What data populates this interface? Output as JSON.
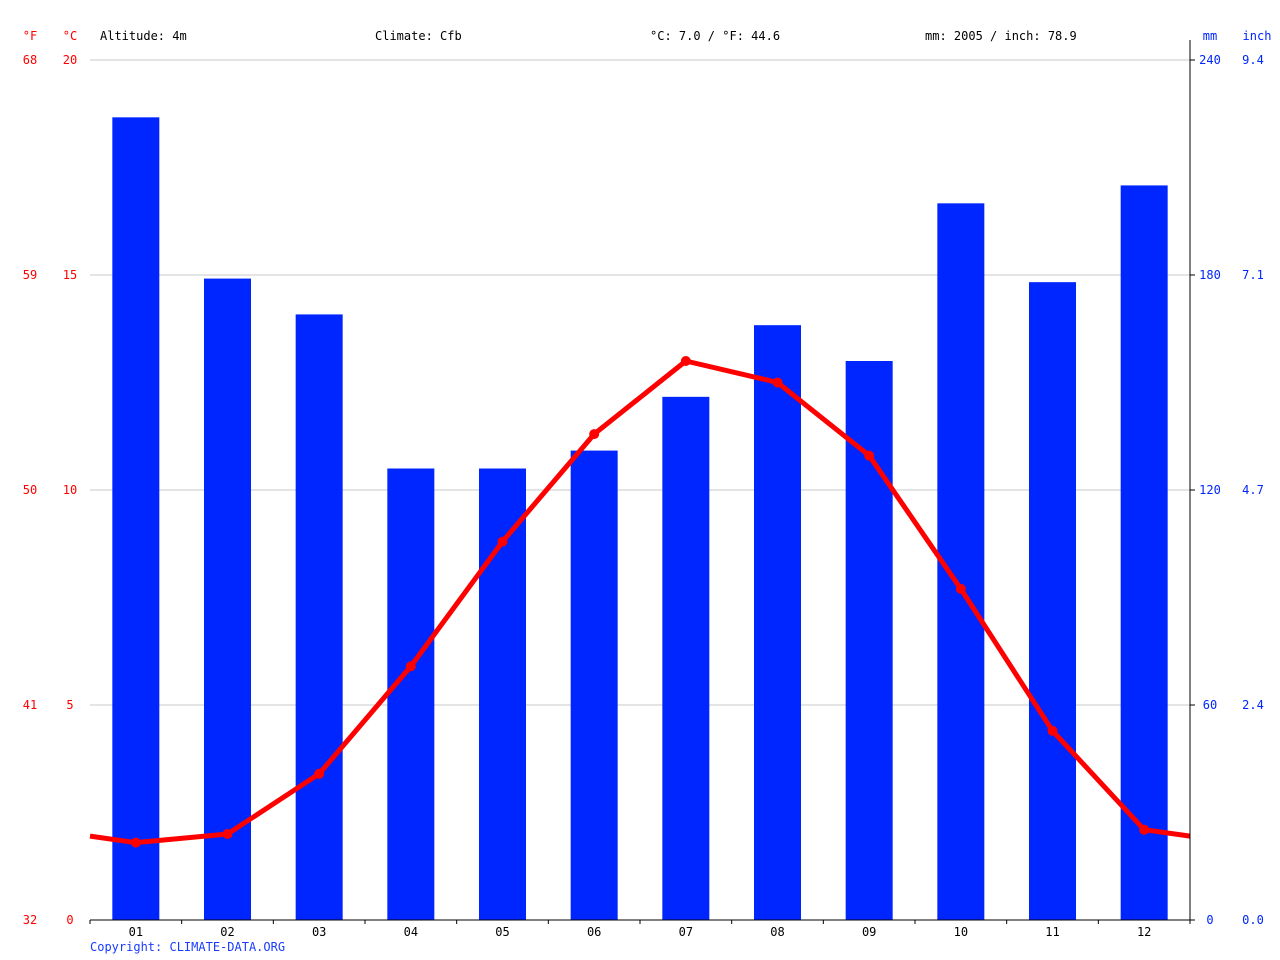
{
  "header": {
    "altitude": "Altitude: 4m",
    "climate": "Climate: Cfb",
    "avg_temp": "°C: 7.0 / °F: 44.6",
    "precip_total": "mm: 2005 / inch: 78.9"
  },
  "footer": {
    "copyright": "Copyright: CLIMATE-DATA.ORG"
  },
  "chart_data": {
    "type": "bar+line",
    "categories": [
      "01",
      "02",
      "03",
      "04",
      "05",
      "06",
      "07",
      "08",
      "09",
      "10",
      "11",
      "12"
    ],
    "series": [
      {
        "values": [
          224,
          179,
          169,
          126,
          126,
          131,
          146,
          166,
          156,
          200,
          178,
          205
        ],
        "type": "bar",
        "color": "#0026ff",
        "axis": "right"
      },
      {
        "values": [
          1.8,
          2.0,
          3.4,
          5.9,
          8.8,
          11.3,
          13.0,
          12.5,
          10.8,
          7.7,
          4.4,
          2.1
        ],
        "type": "line",
        "color": "#ff0000",
        "axis": "left"
      }
    ],
    "left_axis_f": {
      "label": "°F",
      "ticks": [
        "32",
        "41",
        "50",
        "59",
        "68"
      ]
    },
    "left_axis_c": {
      "label": "°C",
      "ticks": [
        "0",
        "5",
        "10",
        "15",
        "20"
      ],
      "ylim": [
        0,
        20
      ]
    },
    "right_axis_mm": {
      "label": "mm",
      "ticks": [
        "0",
        "60",
        "120",
        "180",
        "240"
      ],
      "ylim": [
        0,
        240
      ]
    },
    "right_axis_inch": {
      "label": "inch",
      "ticks": [
        "0.0",
        "2.4",
        "4.7",
        "7.1",
        "9.4"
      ]
    },
    "grid": true,
    "colors": {
      "temp": "#ff0000",
      "precip": "#0026ff",
      "grid": "#c8c8c8",
      "axis": "#000000"
    }
  }
}
